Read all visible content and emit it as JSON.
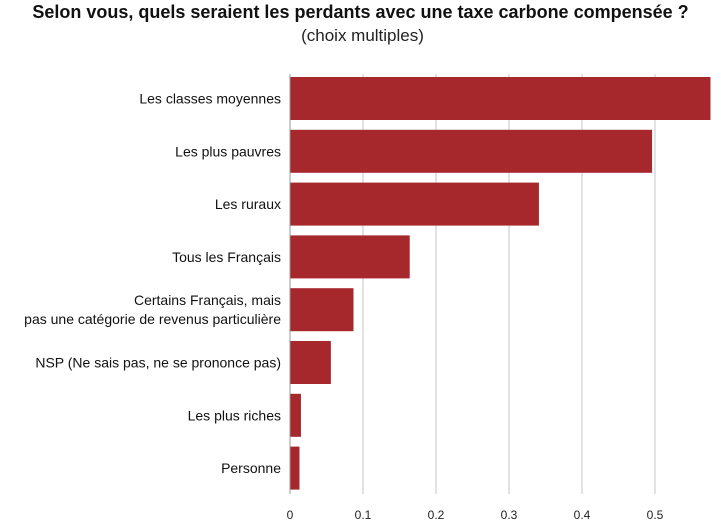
{
  "chart_data": {
    "type": "bar",
    "orientation": "horizontal",
    "title": "Selon vous, quels seraient les perdants avec une taxe carbone compensée ?",
    "subtitle": "(choix multiples)",
    "xlabel": "",
    "ylabel": "",
    "xlim": [
      0,
      0.58
    ],
    "xticks": [
      "0",
      "0.1",
      "0.2",
      "0.3",
      "0.4",
      "0.5"
    ],
    "grid": "vertical",
    "legend": "none",
    "bar_color": "#a6282c",
    "categories": [
      [
        "Les classes moyennes"
      ],
      [
        "Les plus pauvres"
      ],
      [
        "Les ruraux"
      ],
      [
        "Tous les Français"
      ],
      [
        "Certains Français, mais",
        "pas une catégorie de revenus particulière"
      ],
      [
        "NSP (Ne sais pas, ne se prononce pas)"
      ],
      [
        "Les plus riches"
      ],
      [
        "Personne"
      ]
    ],
    "values": [
      0.576,
      0.496,
      0.341,
      0.164,
      0.087,
      0.056,
      0.015,
      0.013
    ]
  }
}
